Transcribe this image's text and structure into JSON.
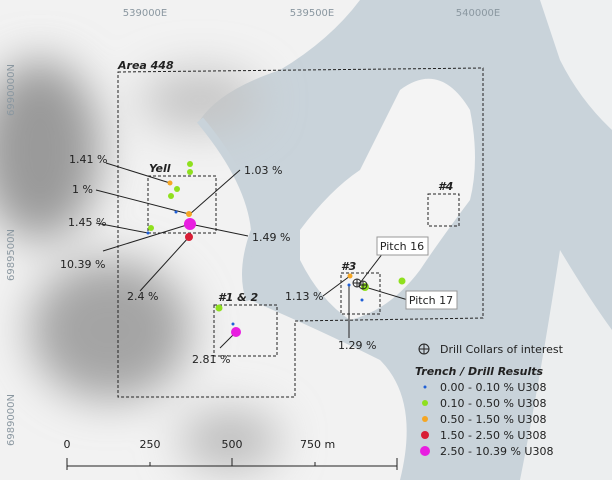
{
  "map": {
    "grid_labels": {
      "easting": [
        "539000E",
        "539500E",
        "540000E"
      ],
      "northing": [
        "6990000N",
        "6989500N",
        "6989000N"
      ]
    },
    "areas": [
      "Area 448",
      "Yell",
      "#4",
      "#3",
      "#1 & 2"
    ],
    "callouts": [
      "1.41 %",
      "1 %",
      "1.45 %",
      "10.39 %",
      "2.4 %",
      "1.03 %",
      "1.49 %",
      "1.13 %",
      "1.29 %",
      "2.81 %"
    ],
    "pitches": [
      "Pitch 16",
      "Pitch 17"
    ],
    "legend": {
      "collar_label": "Drill Collars of interest",
      "title": "Trench / Drill Results",
      "items": [
        {
          "label": "0.00  -  0.10 % U308",
          "color": "#1f5fd6"
        },
        {
          "label": "0.10  -  0.50 % U308",
          "color": "#8fe01e"
        },
        {
          "label": "0.50  -  1.50 % U308",
          "color": "#f5a623"
        },
        {
          "label": "1.50  -  2.50 % U308",
          "color": "#d81e36"
        },
        {
          "label": "2.50  -  10.39 % U308",
          "color": "#e81ee0"
        }
      ]
    },
    "scale_bar": {
      "labels": [
        "0",
        "250",
        "500",
        "750 m"
      ]
    }
  }
}
